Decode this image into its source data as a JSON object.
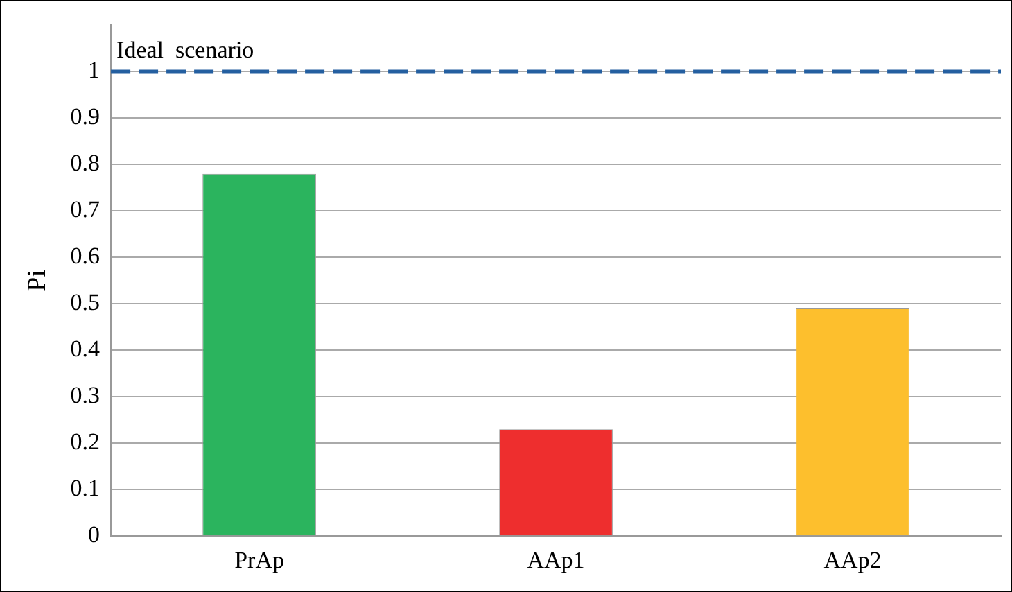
{
  "chart_data": {
    "type": "bar",
    "ylabel": "Pi",
    "categories": [
      "PrAp",
      "AAp1",
      "AAp2"
    ],
    "values": [
      0.78,
      0.23,
      0.49
    ],
    "colors": [
      "#2bb45e",
      "#ee2e2e",
      "#fdbf2d"
    ],
    "ylim": [
      0,
      1.1
    ],
    "yticks": [
      0,
      0.1,
      0.2,
      0.3,
      0.4,
      0.5,
      0.6,
      0.7,
      0.8,
      0.9,
      1
    ],
    "grid": "y",
    "legend": false,
    "ref_lines": [
      {
        "axis": "y",
        "value": 1,
        "label": "Ideal  scenario",
        "color": "#245fa0",
        "line_style": "dashed"
      }
    ]
  }
}
